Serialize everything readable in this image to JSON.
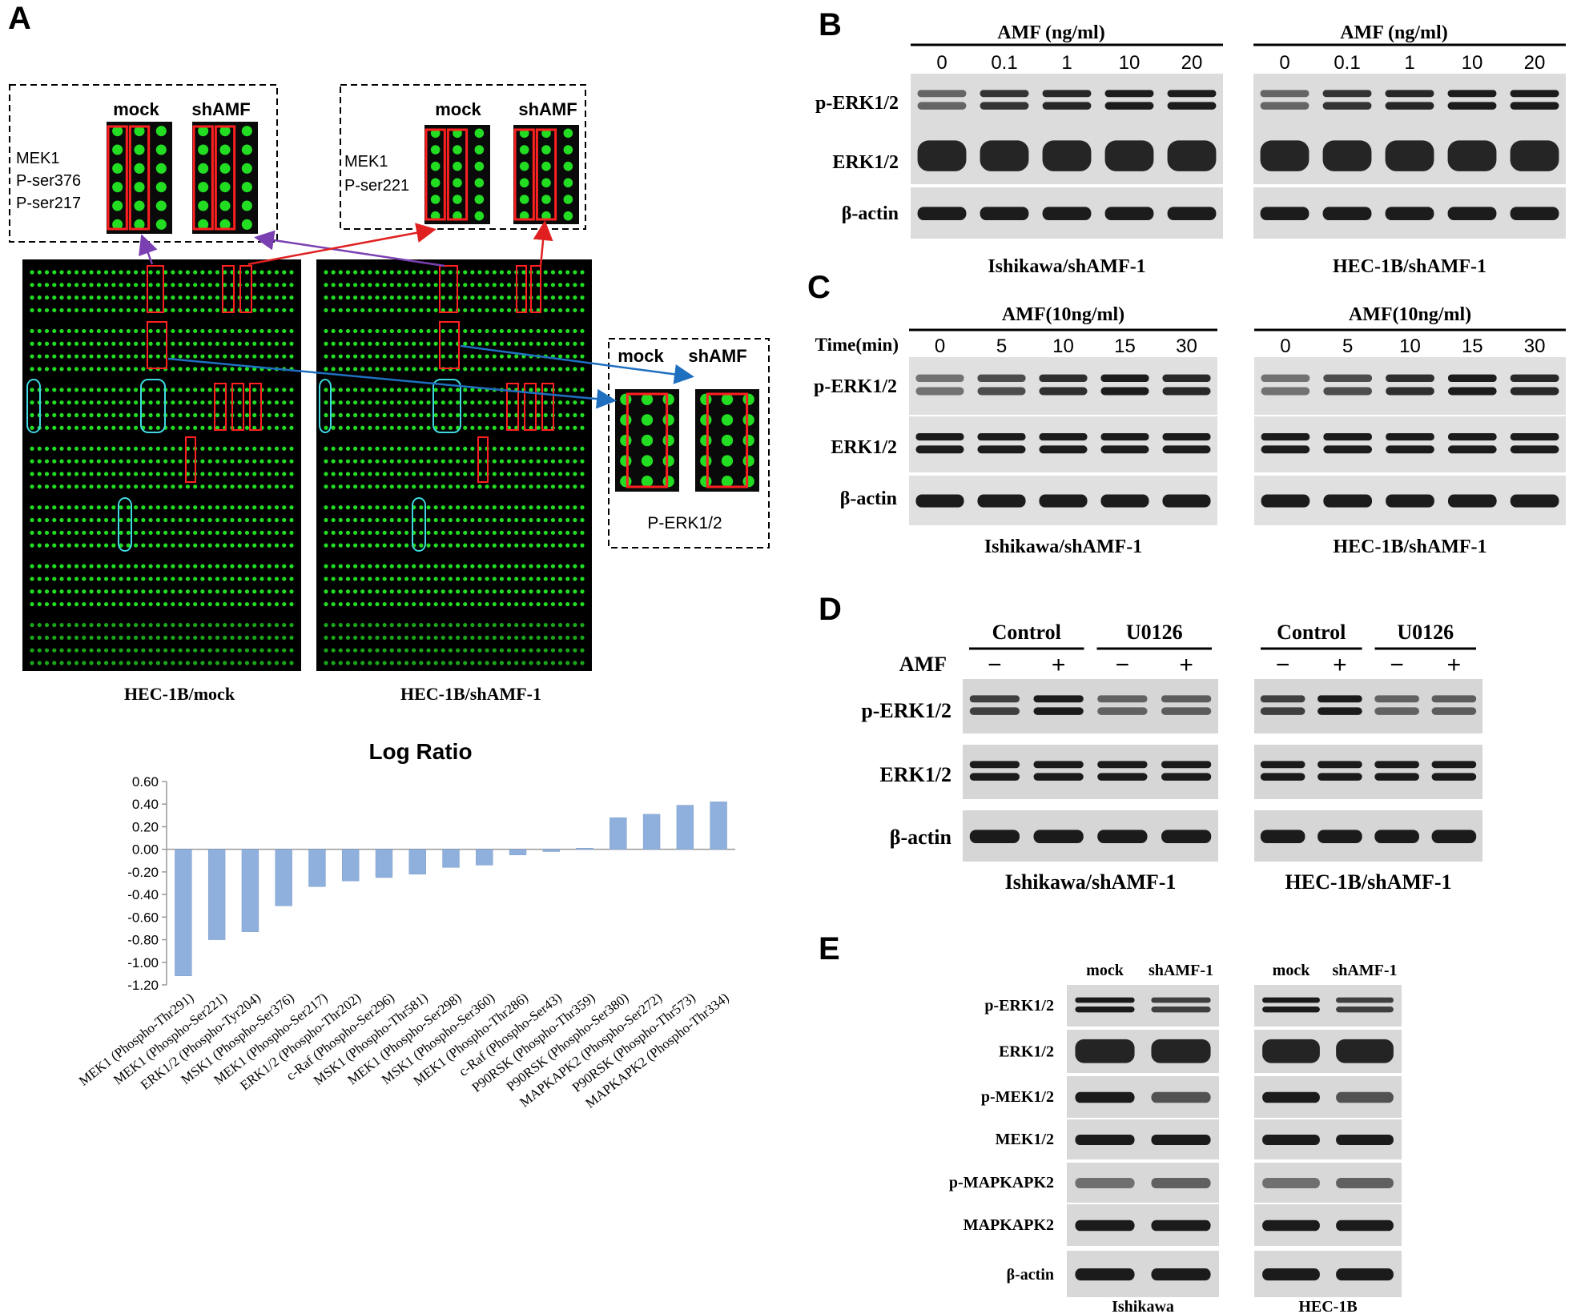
{
  "panels": {
    "A": "A",
    "B": "B",
    "C": "C",
    "D": "D",
    "E": "E"
  },
  "panel_a": {
    "inset_left": {
      "mock": "mock",
      "shamf": "shAMF",
      "lines": [
        "MEK1",
        "P-ser376",
        "P-ser217"
      ]
    },
    "inset_mid": {
      "mock": "mock",
      "shamf": "shAMF",
      "lines": [
        "MEK1",
        "P-ser221"
      ]
    },
    "inset_right": {
      "mock": "mock",
      "shamf": "shAMF",
      "label": "P-ERK1/2"
    },
    "array_left_label": "HEC-1B/mock",
    "array_right_label": "HEC-1B/shAMF-1",
    "colors": {
      "spot": "#22dd22",
      "box": "#ff2020",
      "cyan": "#40d8e0",
      "arrow_red": "#e02020",
      "arrow_blue": "#1f6fc0",
      "arrow_purple": "#7a3fb0",
      "bar": "#8fb0dc"
    }
  },
  "chart_data": {
    "type": "bar",
    "title": "Log Ratio",
    "categories": [
      "MEK1 (Phospho-Thr291)",
      "MEK1 (Phospho-Ser221)",
      "ERK1/2 (Phospho-Tyr204)",
      "MSK1 (Phospho-Ser376)",
      "MEK1 (Phospho-Ser217)",
      "ERK1/2 (Phospho-Thr202)",
      "c-Raf (Phospho-Ser296)",
      "MSK1 (Phospho-Thr581)",
      "MEK1 (Phospho-Ser298)",
      "MSK1 (Phospho-Ser360)",
      "MEK1 (Phospho-Thr286)",
      "c-Raf (Phospho-Ser43)",
      "P90RSK (Phospho-Thr359)",
      "P90RSK (Phospho-Ser380)",
      "MAPKAPK2 (Phospho-Ser272)",
      "P90RSK (Phospho-Thr573)",
      "MAPKAPK2 (Phospho-Thr334)"
    ],
    "values": [
      -1.12,
      -0.8,
      -0.73,
      -0.5,
      -0.33,
      -0.28,
      -0.25,
      -0.22,
      -0.16,
      -0.14,
      -0.05,
      -0.02,
      0.01,
      0.28,
      0.31,
      0.39,
      0.42
    ],
    "ylim": [
      -1.2,
      0.6
    ],
    "yticks": [
      "0.60",
      "0.40",
      "0.20",
      "0.00",
      "-0.20",
      "-0.40",
      "-0.60",
      "-0.80",
      "-1.00",
      "-1.20"
    ],
    "grid": false,
    "legend": "none"
  },
  "panel_b": {
    "header": "AMF (ng/ml)",
    "lanes": [
      "0",
      "0.1",
      "1",
      "10",
      "20"
    ],
    "rows": [
      "p-ERK1/2",
      "ERK1/2",
      "β-actin"
    ],
    "cell_left": "Ishikawa/shAMF-1",
    "cell_right": "HEC-1B/shAMF-1"
  },
  "panel_c": {
    "header": "AMF(10ng/ml)",
    "time_label": "Time(min)",
    "lanes": [
      "0",
      "5",
      "10",
      "15",
      "30"
    ],
    "rows": [
      "p-ERK1/2",
      "ERK1/2",
      "β-actin"
    ],
    "cell_left": "Ishikawa/shAMF-1",
    "cell_right": "HEC-1B/shAMF-1"
  },
  "panel_d": {
    "group_control": "Control",
    "group_u0126": "U0126",
    "amf_label": "AMF",
    "signs": [
      "−",
      "+",
      "−",
      "+"
    ],
    "rows": [
      "p-ERK1/2",
      "ERK1/2",
      "β-actin"
    ],
    "cell_left": "Ishikawa/shAMF-1",
    "cell_right": "HEC-1B/shAMF-1"
  },
  "panel_e": {
    "lanes": [
      "mock",
      "shAMF-1"
    ],
    "rows": [
      "p-ERK1/2",
      "ERK1/2",
      "p-MEK1/2",
      "MEK1/2",
      "p-MAPKAPK2",
      "MAPKAPK2",
      "β-actin"
    ],
    "cell_left": "Ishikawa",
    "cell_right": "HEC-1B"
  }
}
